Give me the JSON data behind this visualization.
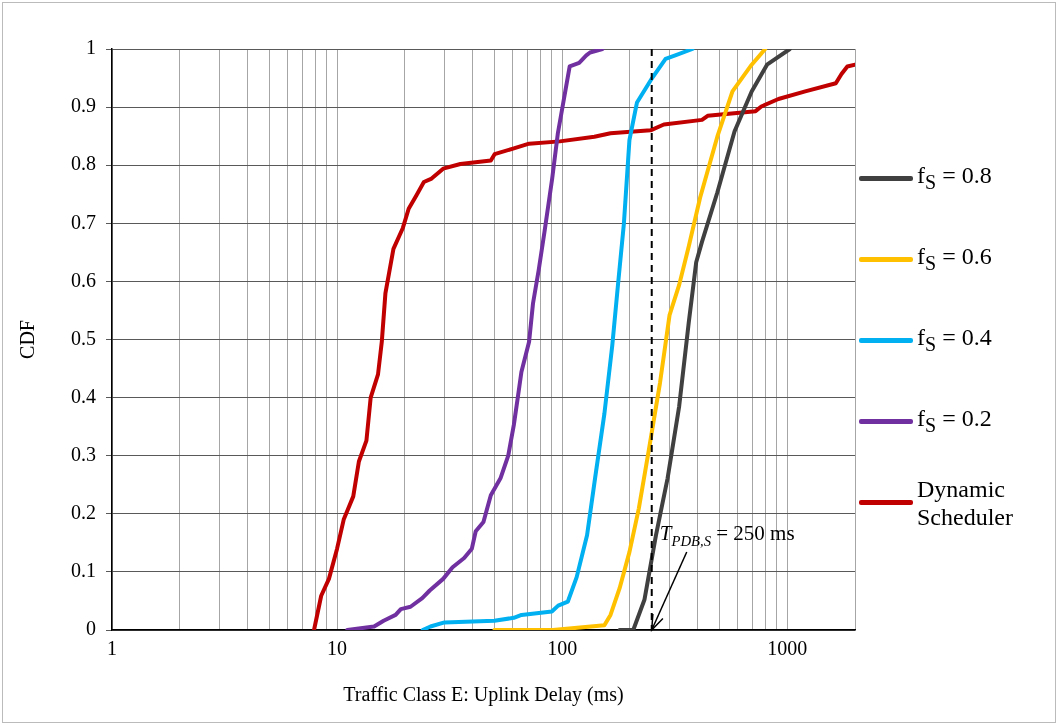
{
  "chart_data": {
    "type": "line",
    "xlabel": "Traffic Class E: Uplink Delay (ms)",
    "ylabel": "CDF",
    "log": "x",
    "grid": true,
    "legend": "right",
    "marker": "none",
    "line_style": "solid",
    "xlim": [
      1,
      2000
    ],
    "xticks": [
      1,
      {
        "value": 2,
        "label": null
      },
      {
        "value": 3,
        "label": null
      },
      {
        "value": 4,
        "label": null
      },
      {
        "value": 5,
        "label": null
      },
      {
        "value": 6,
        "label": null
      },
      {
        "value": 7,
        "label": null
      },
      {
        "value": 8,
        "label": null
      },
      {
        "value": 9,
        "label": null
      },
      10,
      {
        "value": 20,
        "label": null
      },
      {
        "value": 30,
        "label": null
      },
      {
        "value": 40,
        "label": null
      },
      {
        "value": 50,
        "label": null
      },
      {
        "value": 60,
        "label": null
      },
      {
        "value": 70,
        "label": null
      },
      {
        "value": 80,
        "label": null
      },
      {
        "value": 90,
        "label": null
      },
      100,
      {
        "value": 200,
        "label": null
      },
      {
        "value": 300,
        "label": null
      },
      {
        "value": 400,
        "label": null
      },
      {
        "value": 500,
        "label": null
      },
      {
        "value": 600,
        "label": null
      },
      {
        "value": 700,
        "label": null
      },
      {
        "value": 800,
        "label": null
      },
      {
        "value": 900,
        "label": null
      },
      1000,
      {
        "value": 2000,
        "label": null
      }
    ],
    "ylim": [
      0,
      1
    ],
    "yticks": [
      0,
      0.1,
      0.2,
      0.3,
      0.4,
      0.5,
      0.6,
      0.7,
      0.8,
      0.9,
      1
    ],
    "ref_lines": [
      {
        "axis": "x",
        "value": 250,
        "color": "#000000",
        "line_style": "dashed"
      }
    ],
    "annotations": [
      {
        "text": "T$_{PDB,S}$ = 250 ms",
        "x": 250,
        "y": 0
      }
    ],
    "series": [
      {
        "name": "f$_{S}$ = 0.8",
        "color": "#404040",
        "x": [
          180,
          207,
          232,
          261,
          294,
          331,
          365,
          394,
          418,
          489,
          583,
          695,
          813,
          1027
        ],
        "values": [
          0,
          0,
          0.052,
          0.163,
          0.261,
          0.385,
          0.529,
          0.633,
          0.668,
          0.753,
          0.858,
          0.927,
          0.973,
          1
        ]
      },
      {
        "name": "f$_{S}$ = 0.6",
        "color": "#ffc000",
        "x": [
          50,
          91,
          154,
          164,
          180,
          199,
          219,
          242,
          272,
          300,
          331,
          365,
          410,
          489,
          571,
          695,
          798
        ],
        "values": [
          0,
          0,
          0.008,
          0.026,
          0.072,
          0.134,
          0.209,
          0.307,
          0.425,
          0.542,
          0.594,
          0.66,
          0.744,
          0.849,
          0.927,
          0.973,
          1
        ]
      },
      {
        "name": "f$_{S}$ = 0.4",
        "color": "#00b0f0",
        "x": [
          24,
          26,
          30,
          50,
          61,
          66,
          90,
          96,
          106,
          116,
          129,
          140,
          154,
          167,
          177,
          188,
          199,
          215,
          251,
          288,
          318,
          379
        ],
        "values": [
          0,
          0.006,
          0.013,
          0.016,
          0.021,
          0.026,
          0.032,
          0.042,
          0.049,
          0.091,
          0.163,
          0.261,
          0.372,
          0.49,
          0.594,
          0.699,
          0.843,
          0.908,
          0.95,
          0.983,
          0.989,
          1
        ]
      },
      {
        "name": "f$_{S}$ = 0.2",
        "color": "#7030a0",
        "x": [
          11.1,
          14.6,
          16.1,
          18.2,
          19.2,
          21.2,
          23.9,
          25.8,
          29.6,
          32.6,
          36.7,
          39.7,
          41.3,
          44.7,
          48.2,
          53.2,
          57.6,
          61,
          63.4,
          65.9,
          71.3,
          74.2,
          78.7,
          83.5,
          90.3,
          95.7,
          108,
          119,
          128,
          133,
          151
        ],
        "values": [
          0,
          0.006,
          0.016,
          0.026,
          0.036,
          0.04,
          0.055,
          0.068,
          0.088,
          0.108,
          0.124,
          0.14,
          0.17,
          0.186,
          0.232,
          0.261,
          0.3,
          0.353,
          0.398,
          0.444,
          0.496,
          0.562,
          0.62,
          0.686,
          0.777,
          0.855,
          0.97,
          0.976,
          0.989,
          0.994,
          1
        ]
      },
      {
        "name": "Dynamic Scheduler",
        "color": "#c00000",
        "x": [
          7.9,
          8.5,
          9.2,
          10,
          10.7,
          11.8,
          12.5,
          13.5,
          14.1,
          15.2,
          15.8,
          16.4,
          17.8,
          19.6,
          20.8,
          22.5,
          24.3,
          26.3,
          29.6,
          35.3,
          48.2,
          50.1,
          61,
          71.3,
          97.6,
          139,
          164,
          247,
          283,
          418,
          443,
          723,
          767,
          914,
          1202,
          1644,
          1742,
          1849,
          2000
        ],
        "values": [
          0,
          0.059,
          0.088,
          0.14,
          0.19,
          0.23,
          0.29,
          0.326,
          0.4,
          0.44,
          0.496,
          0.58,
          0.656,
          0.692,
          0.725,
          0.748,
          0.771,
          0.777,
          0.794,
          0.802,
          0.808,
          0.819,
          0.829,
          0.837,
          0.841,
          0.849,
          0.855,
          0.86,
          0.87,
          0.878,
          0.885,
          0.893,
          0.901,
          0.914,
          0.927,
          0.941,
          0.957,
          0.97,
          0.973
        ]
      }
    ]
  }
}
